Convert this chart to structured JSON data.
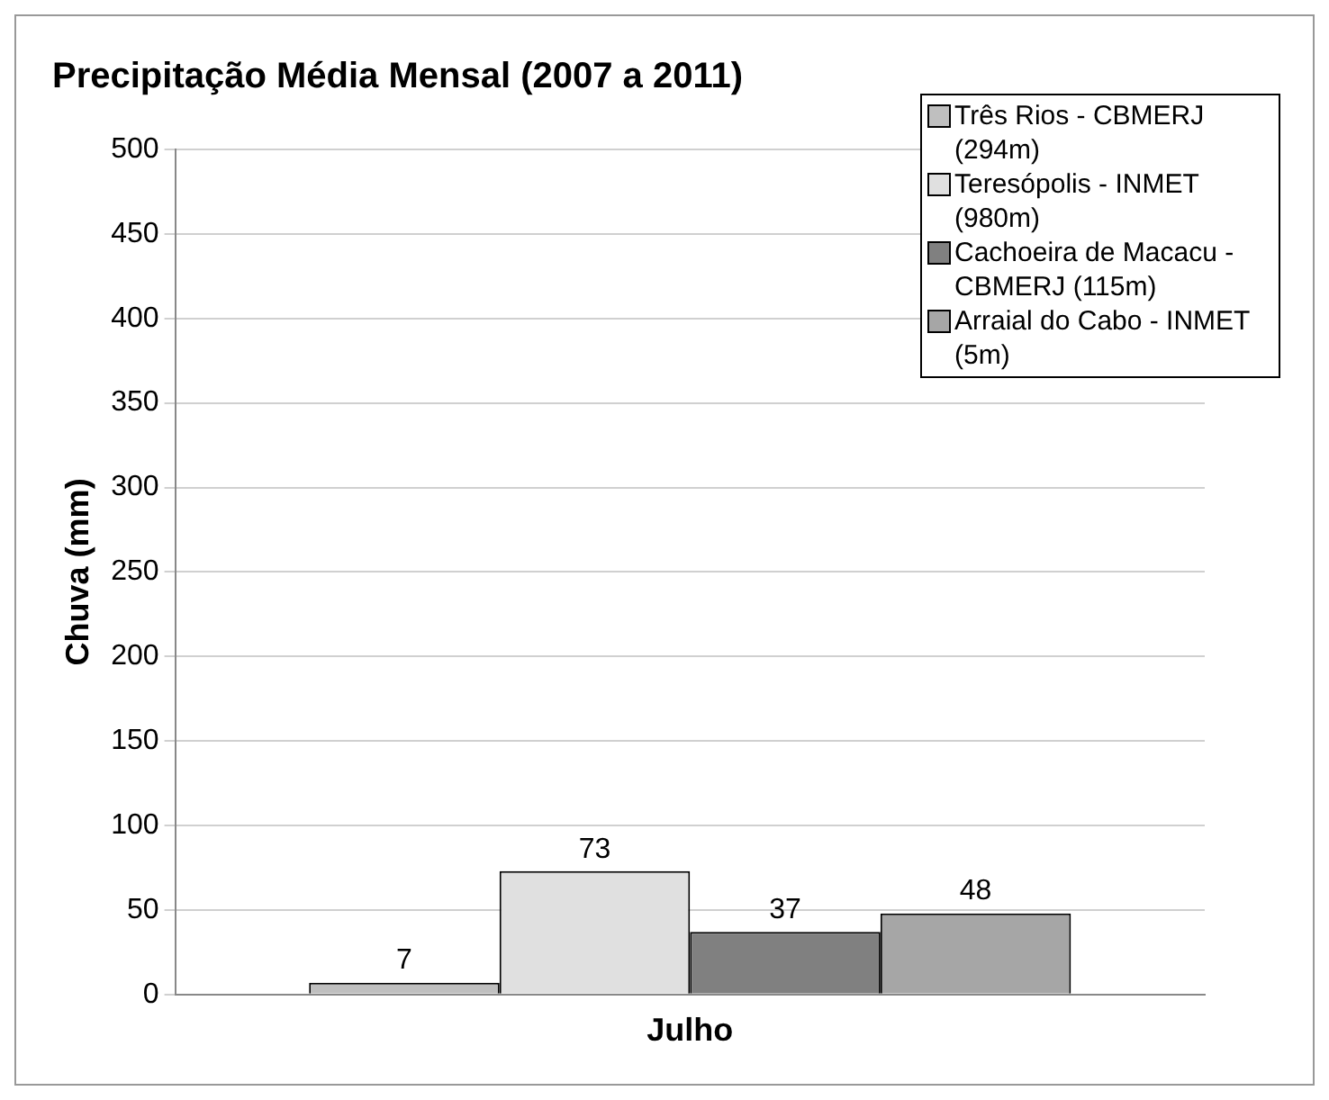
{
  "chart_data": {
    "type": "bar",
    "title": "Precipitação Média Mensal (2007 a 2011)",
    "ylabel": "Chuva (mm)",
    "categories": [
      "Julho"
    ],
    "series": [
      {
        "name": "Três Rios - CBMERJ (294m)",
        "color": "#bfbfbf",
        "values": [
          7
        ]
      },
      {
        "name": "Teresópolis - INMET (980m)",
        "color": "#e0e0e0",
        "values": [
          73
        ]
      },
      {
        "name": "Cachoeira de Macacu - CBMERJ (115m)",
        "color": "#808080",
        "values": [
          37
        ]
      },
      {
        "name": "Arraial do Cabo - INMET (5m)",
        "color": "#a6a6a6",
        "values": [
          48
        ]
      }
    ],
    "ylim": [
      0,
      500
    ],
    "yticks": [
      0,
      50,
      100,
      150,
      200,
      250,
      300,
      350,
      400,
      450,
      500
    ],
    "grid": "y",
    "legend": "top right",
    "data_labels": true
  }
}
